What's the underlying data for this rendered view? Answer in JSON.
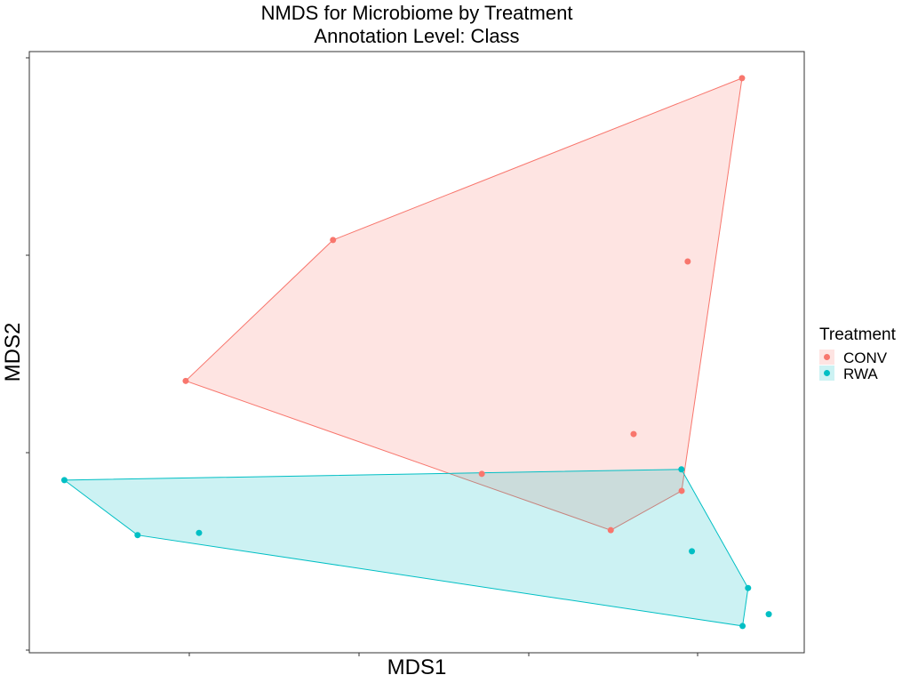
{
  "chart_data": {
    "type": "scatter",
    "title": "NMDS for Microbiome by Treatment",
    "subtitle": "Annotation Level: Class",
    "xlabel": "MDS1",
    "ylabel": "MDS2",
    "xlim": [
      0,
      100
    ],
    "ylim": [
      0,
      100
    ],
    "x_tick_labels": false,
    "y_tick_labels": false,
    "grid": false,
    "hulls": true,
    "legend": {
      "title": "Treatment",
      "placement": "right"
    },
    "series": [
      {
        "name": "CONV",
        "color": "#F8766D",
        "points": [
          {
            "x": 91.97,
            "y": 95.58
          },
          {
            "x": 39.19,
            "y": 68.66
          },
          {
            "x": 20.18,
            "y": 45.22
          },
          {
            "x": 58.39,
            "y": 29.76
          },
          {
            "x": 75.03,
            "y": 20.39
          },
          {
            "x": 84.18,
            "y": 26.93
          },
          {
            "x": 77.98,
            "y": 36.38
          },
          {
            "x": 84.96,
            "y": 65.09
          }
        ],
        "hull": [
          0,
          1,
          2,
          4,
          5
        ]
      },
      {
        "name": "RWA",
        "color": "#00BFC4",
        "points": [
          {
            "x": 4.52,
            "y": 28.72
          },
          {
            "x": 13.97,
            "y": 19.57
          },
          {
            "x": 21.9,
            "y": 19.94
          },
          {
            "x": 84.15,
            "y": 30.51
          },
          {
            "x": 92.75,
            "y": 10.77
          },
          {
            "x": 92.04,
            "y": 4.45
          },
          {
            "x": 85.5,
            "y": 16.88
          },
          {
            "x": 95.42,
            "y": 6.42
          }
        ],
        "hull": [
          0,
          1,
          5,
          4,
          3
        ]
      }
    ]
  }
}
